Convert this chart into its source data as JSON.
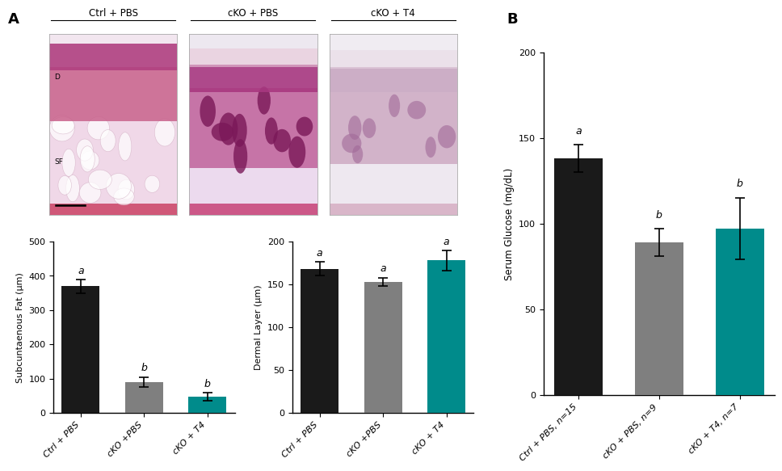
{
  "panel_A_label": "A",
  "panel_B_label": "B",
  "subcut_categories": [
    "Ctrl + PBS",
    "cKO +PBS",
    "cKO + T4"
  ],
  "subcut_values": [
    370,
    90,
    48
  ],
  "subcut_errors": [
    20,
    15,
    12
  ],
  "subcut_letters": [
    "a",
    "b",
    "b"
  ],
  "subcut_ylabel": "Subcuntaenous Fat (μm)",
  "subcut_ylim": [
    0,
    500
  ],
  "subcut_yticks": [
    0,
    100,
    200,
    300,
    400,
    500
  ],
  "dermal_categories": [
    "Ctrl + PBS",
    "cKO +PBS",
    "cKO + T4"
  ],
  "dermal_values": [
    168,
    153,
    178
  ],
  "dermal_errors": [
    8,
    5,
    12
  ],
  "dermal_letters": [
    "a",
    "a",
    "a"
  ],
  "dermal_ylabel": "Dermal Layer (μm)",
  "dermal_ylim": [
    0,
    200
  ],
  "dermal_yticks": [
    0,
    50,
    100,
    150,
    200
  ],
  "serum_categories": [
    "Ctrl + PBS, n=15",
    "cKO + PBS, n=9",
    "cKO + T4, n=7"
  ],
  "serum_values": [
    138,
    89,
    97
  ],
  "serum_errors": [
    8,
    8,
    18
  ],
  "serum_letters": [
    "a",
    "b",
    "b"
  ],
  "serum_ylabel": "Serum Glucose (mg/dL)",
  "serum_ylim": [
    0,
    200
  ],
  "serum_yticks": [
    0,
    50,
    100,
    150,
    200
  ],
  "color_black": "#1a1a1a",
  "color_gray": "#7f7f7f",
  "color_teal": "#008b8b",
  "background_color": "#ffffff",
  "histo_titles": [
    "Ctrl + PBS",
    "cKO + PBS",
    "cKO + T4"
  ],
  "histo_label_D": "D",
  "histo_label_SF": "SF",
  "histo_bg": [
    "#f2e6ef",
    "#ede8f0",
    "#f0ecf2"
  ],
  "histo_dermal_color": [
    "#c8608a",
    "#c0609a",
    "#c8a0bc"
  ],
  "histo_epi_color": [
    "#b04080",
    "#a83880",
    "#c09ab8"
  ],
  "histo_sf_color": [
    "#f0d8e8",
    "#ecdaee",
    "#eee8f0"
  ],
  "histo_muscle_color": [
    "#d05878",
    "#cc5888",
    "#d0a0b8"
  ]
}
